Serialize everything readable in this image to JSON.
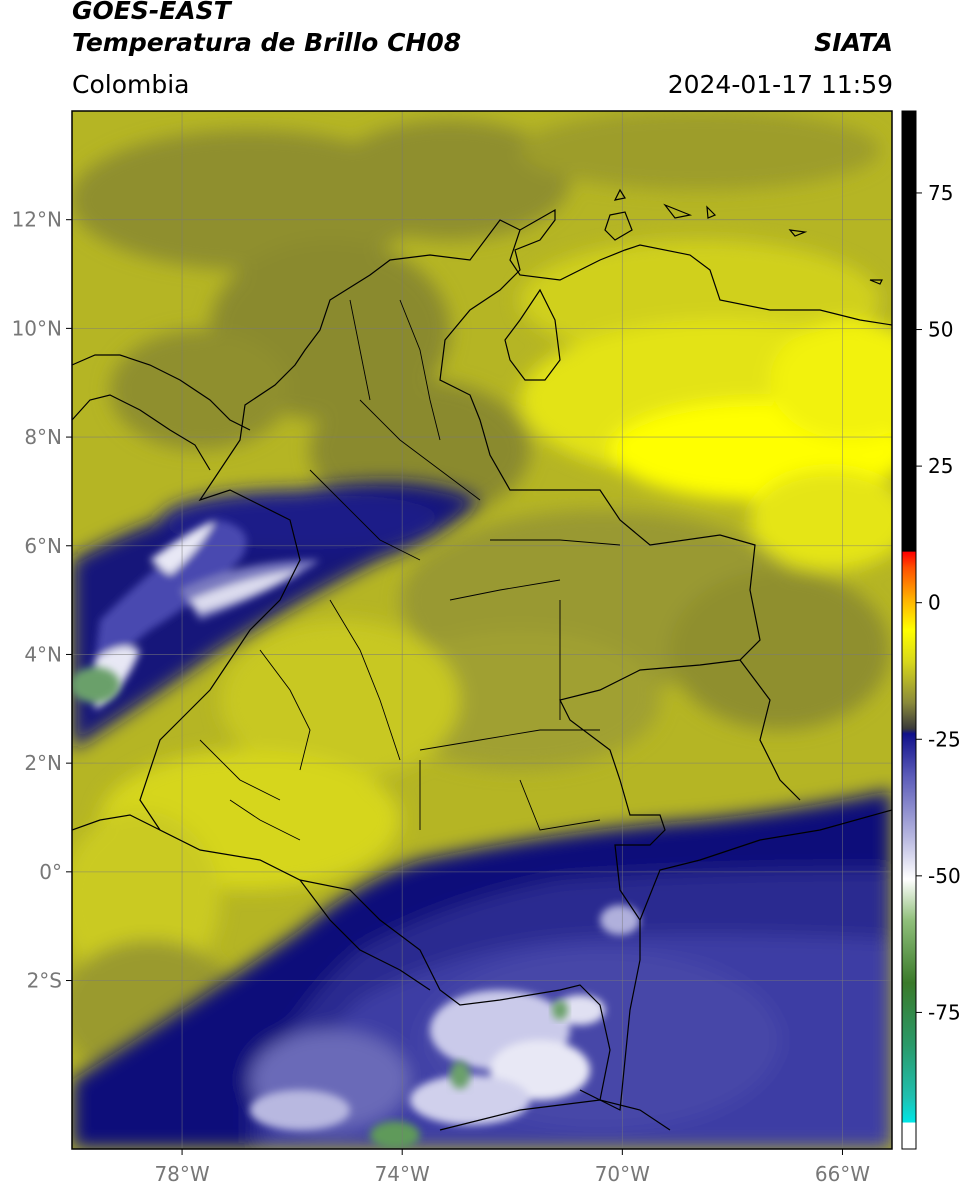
{
  "header": {
    "satellite": "GOES-EAST",
    "product": "Temperatura de Brillo CH08",
    "organization": "SIATA",
    "region": "Colombia",
    "datetime": "2024-01-17 11:59"
  },
  "map": {
    "lon_range": [
      -80,
      -65.1
    ],
    "lat_range": [
      -5.1,
      14
    ],
    "lat_ticks": [
      {
        "value": 12,
        "label": "12°N"
      },
      {
        "value": 10,
        "label": "10°N"
      },
      {
        "value": 8,
        "label": "8°N"
      },
      {
        "value": 6,
        "label": "6°N"
      },
      {
        "value": 4,
        "label": "4°N"
      },
      {
        "value": 2,
        "label": "2°N"
      },
      {
        "value": 0,
        "label": "0°"
      },
      {
        "value": -2,
        "label": "2°S"
      }
    ],
    "lon_ticks": [
      {
        "value": -78,
        "label": "78°W"
      },
      {
        "value": -74,
        "label": "74°W"
      },
      {
        "value": -70,
        "label": "70°W"
      },
      {
        "value": -66,
        "label": "66°W"
      }
    ],
    "colors": {
      "olive_dark": "#8f8f2e",
      "olive": "#a5a52c",
      "yellow_olive": "#c9c921",
      "yellow": "#e5e516",
      "bright_yellow": "#ffff00",
      "navy": "#10107a",
      "blue": "#3b3ba0",
      "lavender": "#8a8ac8",
      "white": "#f2f2f8",
      "green": "#5f9a5a"
    }
  },
  "colorbar": {
    "range": [
      -100,
      90
    ],
    "ticks": [
      {
        "value": 75,
        "label": "75"
      },
      {
        "value": 50,
        "label": "50"
      },
      {
        "value": 25,
        "label": "25"
      },
      {
        "value": 0,
        "label": "0"
      },
      {
        "value": -25,
        "label": "-25"
      },
      {
        "value": -50,
        "label": "-50"
      },
      {
        "value": -75,
        "label": "-75"
      }
    ]
  }
}
